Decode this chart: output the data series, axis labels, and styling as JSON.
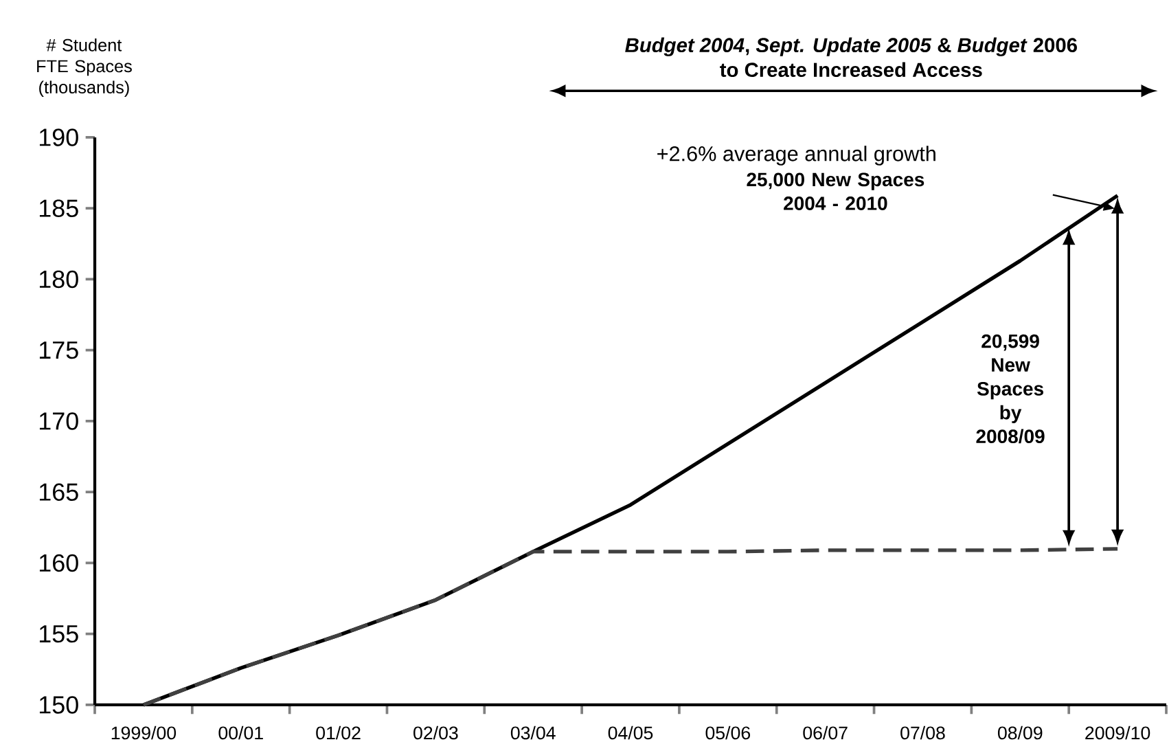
{
  "chart_data": {
    "type": "line",
    "title": "*Budget 2004*, *Sept. Update 2005* & *Budget* 2006",
    "subtitle": "to Create Increased Access",
    "ylabel": "# Student FTE Spaces (thousands)",
    "categories": [
      "1999/00",
      "00/01",
      "01/02",
      "02/03",
      "03/04",
      "04/05",
      "05/06",
      "06/07",
      "07/08",
      "08/09",
      "2009/10"
    ],
    "series": [
      {
        "color": "#000000",
        "line_style": "solid",
        "values": [
          150,
          152.6,
          154.9,
          157.4,
          160.8,
          164.1,
          168.4,
          172.7,
          177.0,
          181.3,
          185.9
        ]
      },
      {
        "color": "#404040",
        "line_style": "dashed",
        "values": [
          150,
          152.6,
          154.9,
          157.4,
          160.8,
          160.8,
          160.8,
          160.9,
          160.9,
          160.9,
          161.0
        ]
      }
    ],
    "ylim": [
      150,
      190
    ],
    "yticks": [
      150,
      155,
      160,
      165,
      170,
      175,
      180,
      185,
      190
    ],
    "annotations": [
      "+2.6% average annual growth",
      "25,000 New Spaces 2004 - 2010",
      "20,599 New Spaces by 2008/09"
    ],
    "grid": false,
    "marker": "none"
  }
}
